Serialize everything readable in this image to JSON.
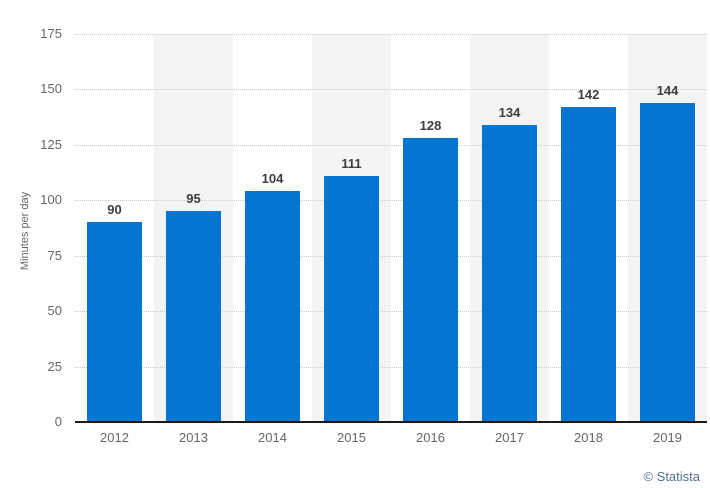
{
  "chart_data": {
    "type": "bar",
    "title": "",
    "categories": [
      "2012",
      "2013",
      "2014",
      "2015",
      "2016",
      "2017",
      "2018",
      "2019"
    ],
    "values": [
      90,
      95,
      104,
      111,
      128,
      134,
      142,
      144
    ],
    "xlabel": "",
    "ylabel": "Minutes per day",
    "ylim": [
      0,
      175
    ],
    "yticks": [
      0,
      25,
      50,
      75,
      100,
      125,
      150,
      175
    ],
    "grid": "horizontal-dotted",
    "legend": "none",
    "bar_color": "#0575d2",
    "band_color": "#f4f4f4",
    "banded_categories": [
      "2013",
      "2015",
      "2017",
      "2019"
    ]
  },
  "footer": {
    "credit": "© Statista"
  }
}
